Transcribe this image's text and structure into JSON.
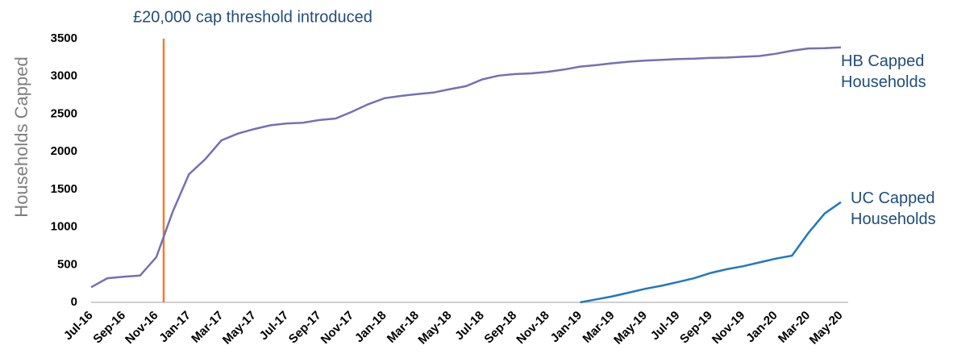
{
  "chart_data": {
    "type": "line",
    "annotation": "£20,000 cap threshold introduced",
    "ylabel": "Households Capped",
    "categories": [
      "Jul-16",
      null,
      "Sep-16",
      null,
      "Nov-16",
      null,
      "Jan-17",
      null,
      "Mar-17",
      null,
      "May-17",
      null,
      "Jul-17",
      null,
      "Sep-17",
      null,
      "Nov-17",
      null,
      "Jan-18",
      null,
      "Mar-18",
      null,
      "May-18",
      null,
      "Jul-18",
      null,
      "Sep-18",
      null,
      "Nov-18",
      null,
      "Jan-19",
      null,
      "Mar-19",
      null,
      "May-19",
      null,
      "Jul-19",
      null,
      "Sep-19",
      null,
      "Nov-19",
      null,
      "Jan-20",
      null,
      "Mar-20",
      null,
      "May-20"
    ],
    "series": [
      {
        "name": "HB Capped Households",
        "color": "#7470b5",
        "values": [
          200,
          320,
          340,
          355,
          600,
          1200,
          1700,
          1900,
          2150,
          2240,
          2300,
          2350,
          2375,
          2385,
          2420,
          2440,
          2530,
          2630,
          2710,
          2740,
          2765,
          2785,
          2830,
          2870,
          2960,
          3010,
          3030,
          3040,
          3060,
          3090,
          3130,
          3150,
          3175,
          3195,
          3210,
          3220,
          3230,
          3235,
          3245,
          3250,
          3260,
          3270,
          3300,
          3340,
          3370,
          3375,
          3385
        ]
      },
      {
        "name": "UC Capped Households",
        "color": "#1f78c1",
        "values": [
          null,
          null,
          null,
          null,
          null,
          null,
          null,
          null,
          null,
          null,
          null,
          null,
          null,
          null,
          null,
          null,
          null,
          null,
          null,
          null,
          null,
          null,
          null,
          null,
          null,
          null,
          null,
          null,
          null,
          null,
          0,
          40,
          80,
          130,
          180,
          220,
          270,
          320,
          390,
          440,
          480,
          530,
          580,
          620,
          920,
          1180,
          1330
        ]
      }
    ],
    "ylim": [
      0,
      3500
    ],
    "yticks": [
      0,
      500,
      1000,
      1500,
      2000,
      2500,
      3000,
      3500
    ],
    "annotation_color": "#ed7d31"
  }
}
